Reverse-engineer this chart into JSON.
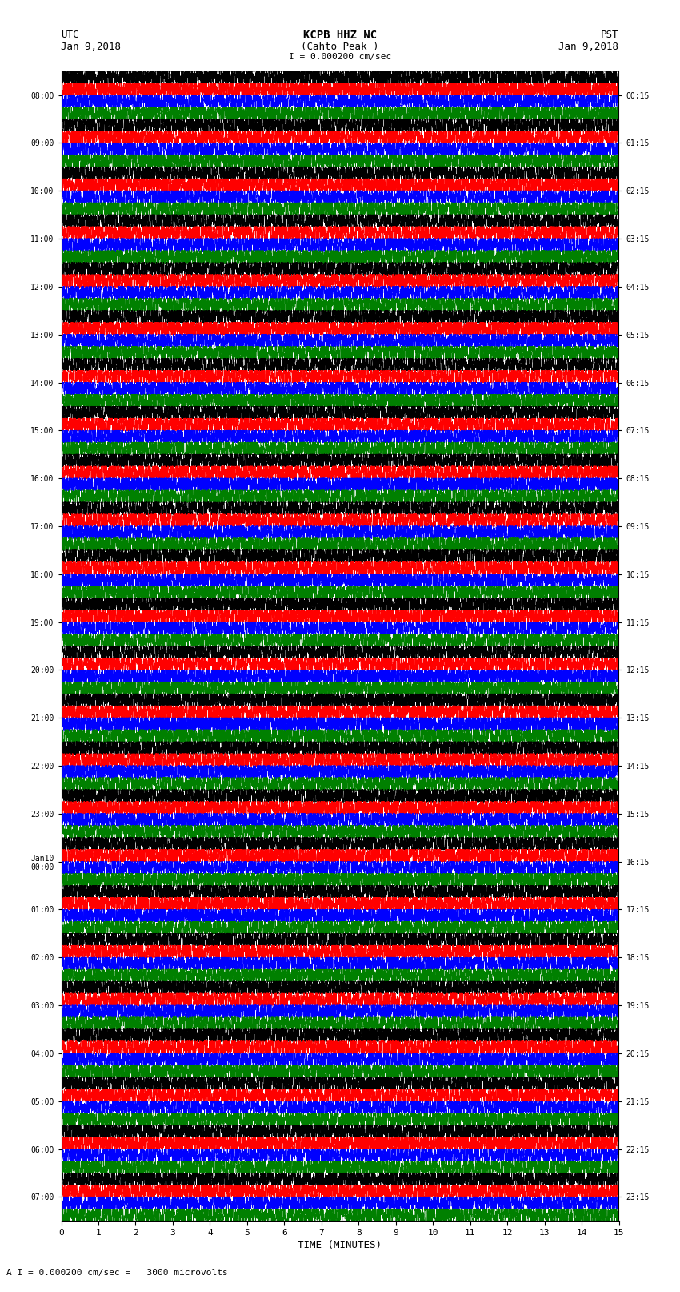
{
  "title_line1": "KCPB HHZ NC",
  "title_line2": "(Cahto Peak )",
  "scale_label": "I = 0.000200 cm/sec",
  "bottom_scale_label": "A I = 0.000200 cm/sec =   3000 microvolts",
  "utc_label": "UTC",
  "utc_date": "Jan 9,2018",
  "pst_label": "PST",
  "pst_date": "Jan 9,2018",
  "xlabel": "TIME (MINUTES)",
  "left_times": [
    "08:00",
    "09:00",
    "10:00",
    "11:00",
    "12:00",
    "13:00",
    "14:00",
    "15:00",
    "16:00",
    "17:00",
    "18:00",
    "19:00",
    "20:00",
    "21:00",
    "22:00",
    "23:00",
    "Jan10\n00:00",
    "01:00",
    "02:00",
    "03:00",
    "04:00",
    "05:00",
    "06:00",
    "07:00"
  ],
  "right_times": [
    "00:15",
    "01:15",
    "02:15",
    "03:15",
    "04:15",
    "05:15",
    "06:15",
    "07:15",
    "08:15",
    "09:15",
    "10:15",
    "11:15",
    "12:15",
    "13:15",
    "14:15",
    "15:15",
    "16:15",
    "17:15",
    "18:15",
    "19:15",
    "20:15",
    "21:15",
    "22:15",
    "23:15"
  ],
  "num_rows": 24,
  "trace_colors": [
    "black",
    "red",
    "blue",
    "green"
  ],
  "bg_color": "white",
  "fig_width": 8.5,
  "fig_height": 16.13,
  "dpi": 100,
  "xlim": [
    0,
    15
  ],
  "xticks": [
    0,
    1,
    2,
    3,
    4,
    5,
    6,
    7,
    8,
    9,
    10,
    11,
    12,
    13,
    14,
    15
  ],
  "n_pts": 8000,
  "seed": 42
}
